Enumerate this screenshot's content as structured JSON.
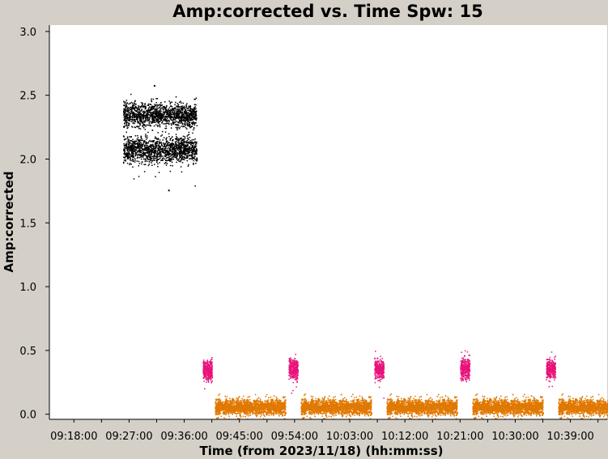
{
  "chart_data": {
    "type": "scatter",
    "title": "Amp:corrected vs. Time Spw: 15",
    "xlabel": "Time (from 2023/11/18) (hh:mm:ss)",
    "ylabel": "Amp:corrected",
    "x_ticks": [
      "09:18:00",
      "09:27:00",
      "09:36:00",
      "09:45:00",
      "09:54:00",
      "10:03:00",
      "10:12:00",
      "10:21:00",
      "10:30:00",
      "10:39:00"
    ],
    "y_ticks": [
      "0.0",
      "0.5",
      "1.0",
      "1.5",
      "2.0",
      "2.5",
      "3.0"
    ],
    "xlim": [
      "09:14:00",
      "10:45:00"
    ],
    "ylim": [
      -0.04,
      3.05
    ],
    "grid": false,
    "legend": "none",
    "series": [
      {
        "color": "#000000",
        "groups": [
          {
            "x_start": "09:26:00",
            "x_end": "09:38:00",
            "bands": [
              {
                "y_center": 2.35,
                "y_spread": 0.1
              },
              {
                "y_center": 2.08,
                "y_spread": 0.1
              }
            ],
            "y_min": 1.76,
            "y_max": 2.58
          }
        ]
      },
      {
        "color": "#e8137a",
        "groups": [
          {
            "x_start": "09:39:00",
            "x_end": "09:40:30",
            "y_center": 0.35,
            "y_spread": 0.08
          },
          {
            "x_start": "09:53:00",
            "x_end": "09:54:30",
            "y_center": 0.36,
            "y_spread": 0.08
          },
          {
            "x_start": "10:07:00",
            "x_end": "10:08:30",
            "y_center": 0.36,
            "y_spread": 0.08
          },
          {
            "x_start": "10:21:00",
            "x_end": "10:22:30",
            "y_center": 0.36,
            "y_spread": 0.08
          },
          {
            "x_start": "10:35:00",
            "x_end": "10:36:30",
            "y_center": 0.36,
            "y_spread": 0.08
          }
        ]
      },
      {
        "color": "#e07800",
        "groups": [
          {
            "x_start": "09:41:00",
            "x_end": "09:52:30",
            "y_center": 0.06,
            "y_spread": 0.06
          },
          {
            "x_start": "09:55:00",
            "x_end": "10:06:30",
            "y_center": 0.06,
            "y_spread": 0.06
          },
          {
            "x_start": "10:09:00",
            "x_end": "10:20:30",
            "y_center": 0.06,
            "y_spread": 0.06
          },
          {
            "x_start": "10:23:00",
            "x_end": "10:34:30",
            "y_center": 0.06,
            "y_spread": 0.06
          },
          {
            "x_start": "10:37:00",
            "x_end": "10:48:30",
            "y_center": 0.06,
            "y_spread": 0.06
          }
        ]
      }
    ]
  }
}
